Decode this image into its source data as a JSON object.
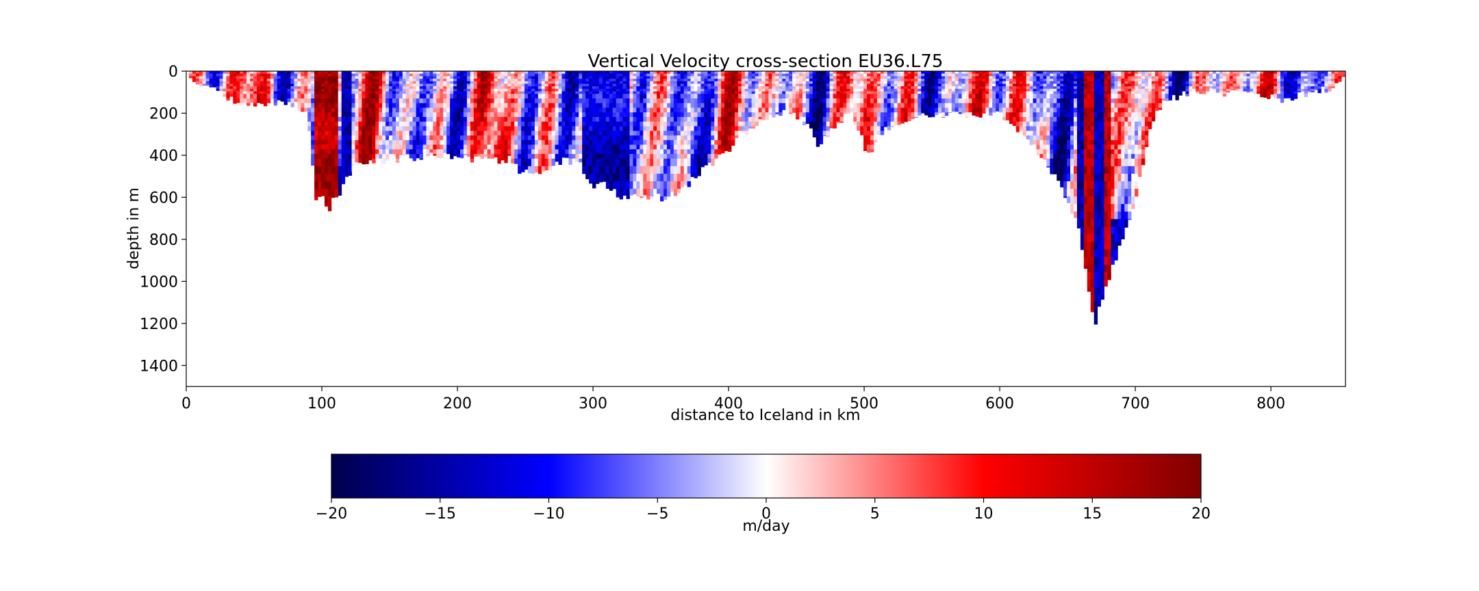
{
  "chart_data": {
    "type": "heatmap",
    "title": "Vertical Velocity cross-section EU36.L75",
    "xlabel": "distance to Iceland in km",
    "ylabel": "depth in m",
    "xlim": [
      0,
      855
    ],
    "ylim": [
      1500,
      0
    ],
    "y_inverted": true,
    "x_ticks": [
      0,
      100,
      200,
      300,
      400,
      500,
      600,
      700,
      800
    ],
    "y_ticks": [
      0,
      200,
      400,
      600,
      800,
      1000,
      1200,
      1400
    ],
    "colormap": "seismic",
    "colorbar": {
      "label": "m/day",
      "range": [
        -20,
        20
      ],
      "ticks": [
        "−20",
        "−15",
        "−10",
        "−5",
        "0",
        "5",
        "10",
        "15",
        "20"
      ],
      "colors": [
        "#00004c",
        "#0000ff",
        "#ffffff",
        "#ff0000",
        "#800000"
      ],
      "placement": "bottom"
    },
    "bottom_profile": {
      "distance_km": [
        0,
        5,
        15,
        25,
        35,
        45,
        55,
        70,
        80,
        88,
        92,
        95,
        100,
        105,
        110,
        115,
        120,
        125,
        135,
        150,
        180,
        210,
        240,
        245,
        260,
        280,
        290,
        300,
        310,
        320,
        330,
        340,
        350,
        360,
        370,
        380,
        390,
        400,
        410,
        420,
        430,
        440,
        450,
        460,
        465,
        470,
        480,
        490,
        500,
        505,
        510,
        520,
        530,
        540,
        550,
        560,
        570,
        580,
        590,
        600,
        610,
        620,
        630,
        640,
        650,
        655,
        660,
        665,
        670,
        675,
        680,
        685,
        690,
        695,
        700,
        705,
        710,
        715,
        720,
        730,
        740,
        760,
        780,
        800,
        815,
        820,
        840,
        850,
        855
      ],
      "depth_m": [
        0,
        40,
        80,
        100,
        140,
        160,
        150,
        150,
        160,
        200,
        350,
        600,
        600,
        660,
        600,
        560,
        500,
        450,
        430,
        420,
        400,
        420,
        420,
        480,
        480,
        420,
        440,
        540,
        540,
        590,
        590,
        600,
        600,
        590,
        540,
        480,
        420,
        380,
        300,
        260,
        220,
        200,
        220,
        260,
        350,
        320,
        240,
        200,
        350,
        420,
        300,
        260,
        240,
        220,
        200,
        200,
        200,
        200,
        200,
        200,
        260,
        320,
        400,
        500,
        600,
        700,
        800,
        1000,
        1200,
        1100,
        1000,
        900,
        820,
        720,
        600,
        450,
        300,
        200,
        150,
        120,
        100,
        100,
        110,
        120,
        150,
        110,
        90,
        50,
        0
      ]
    }
  }
}
